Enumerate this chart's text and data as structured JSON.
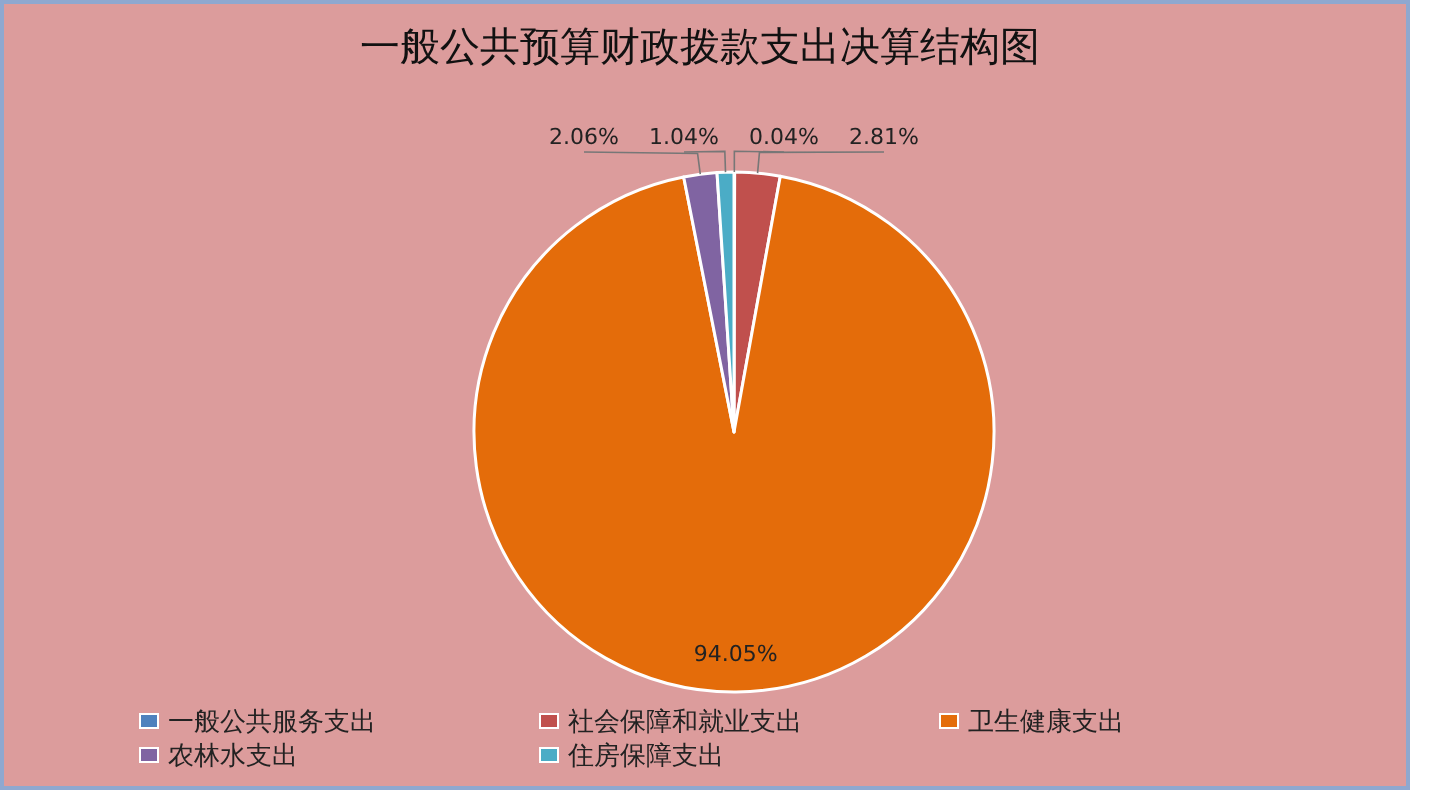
{
  "chart_data": {
    "type": "pie",
    "title": "一般公共预算财政拨款支出决算结构图",
    "categories": [
      "一般公共服务支出",
      "社会保障和就业支出",
      "卫生健康支出",
      "农林水支出",
      "住房保障支出"
    ],
    "values": [
      0.04,
      2.81,
      94.05,
      2.06,
      1.04
    ],
    "colors": [
      "#4f81bd",
      "#c0504d",
      "#e46c0a",
      "#8064a2",
      "#4bacc6"
    ],
    "value_labels": [
      "0.04%",
      "2.81%",
      "94.05%",
      "2.06%",
      "1.04%"
    ],
    "legend": "bottom"
  }
}
